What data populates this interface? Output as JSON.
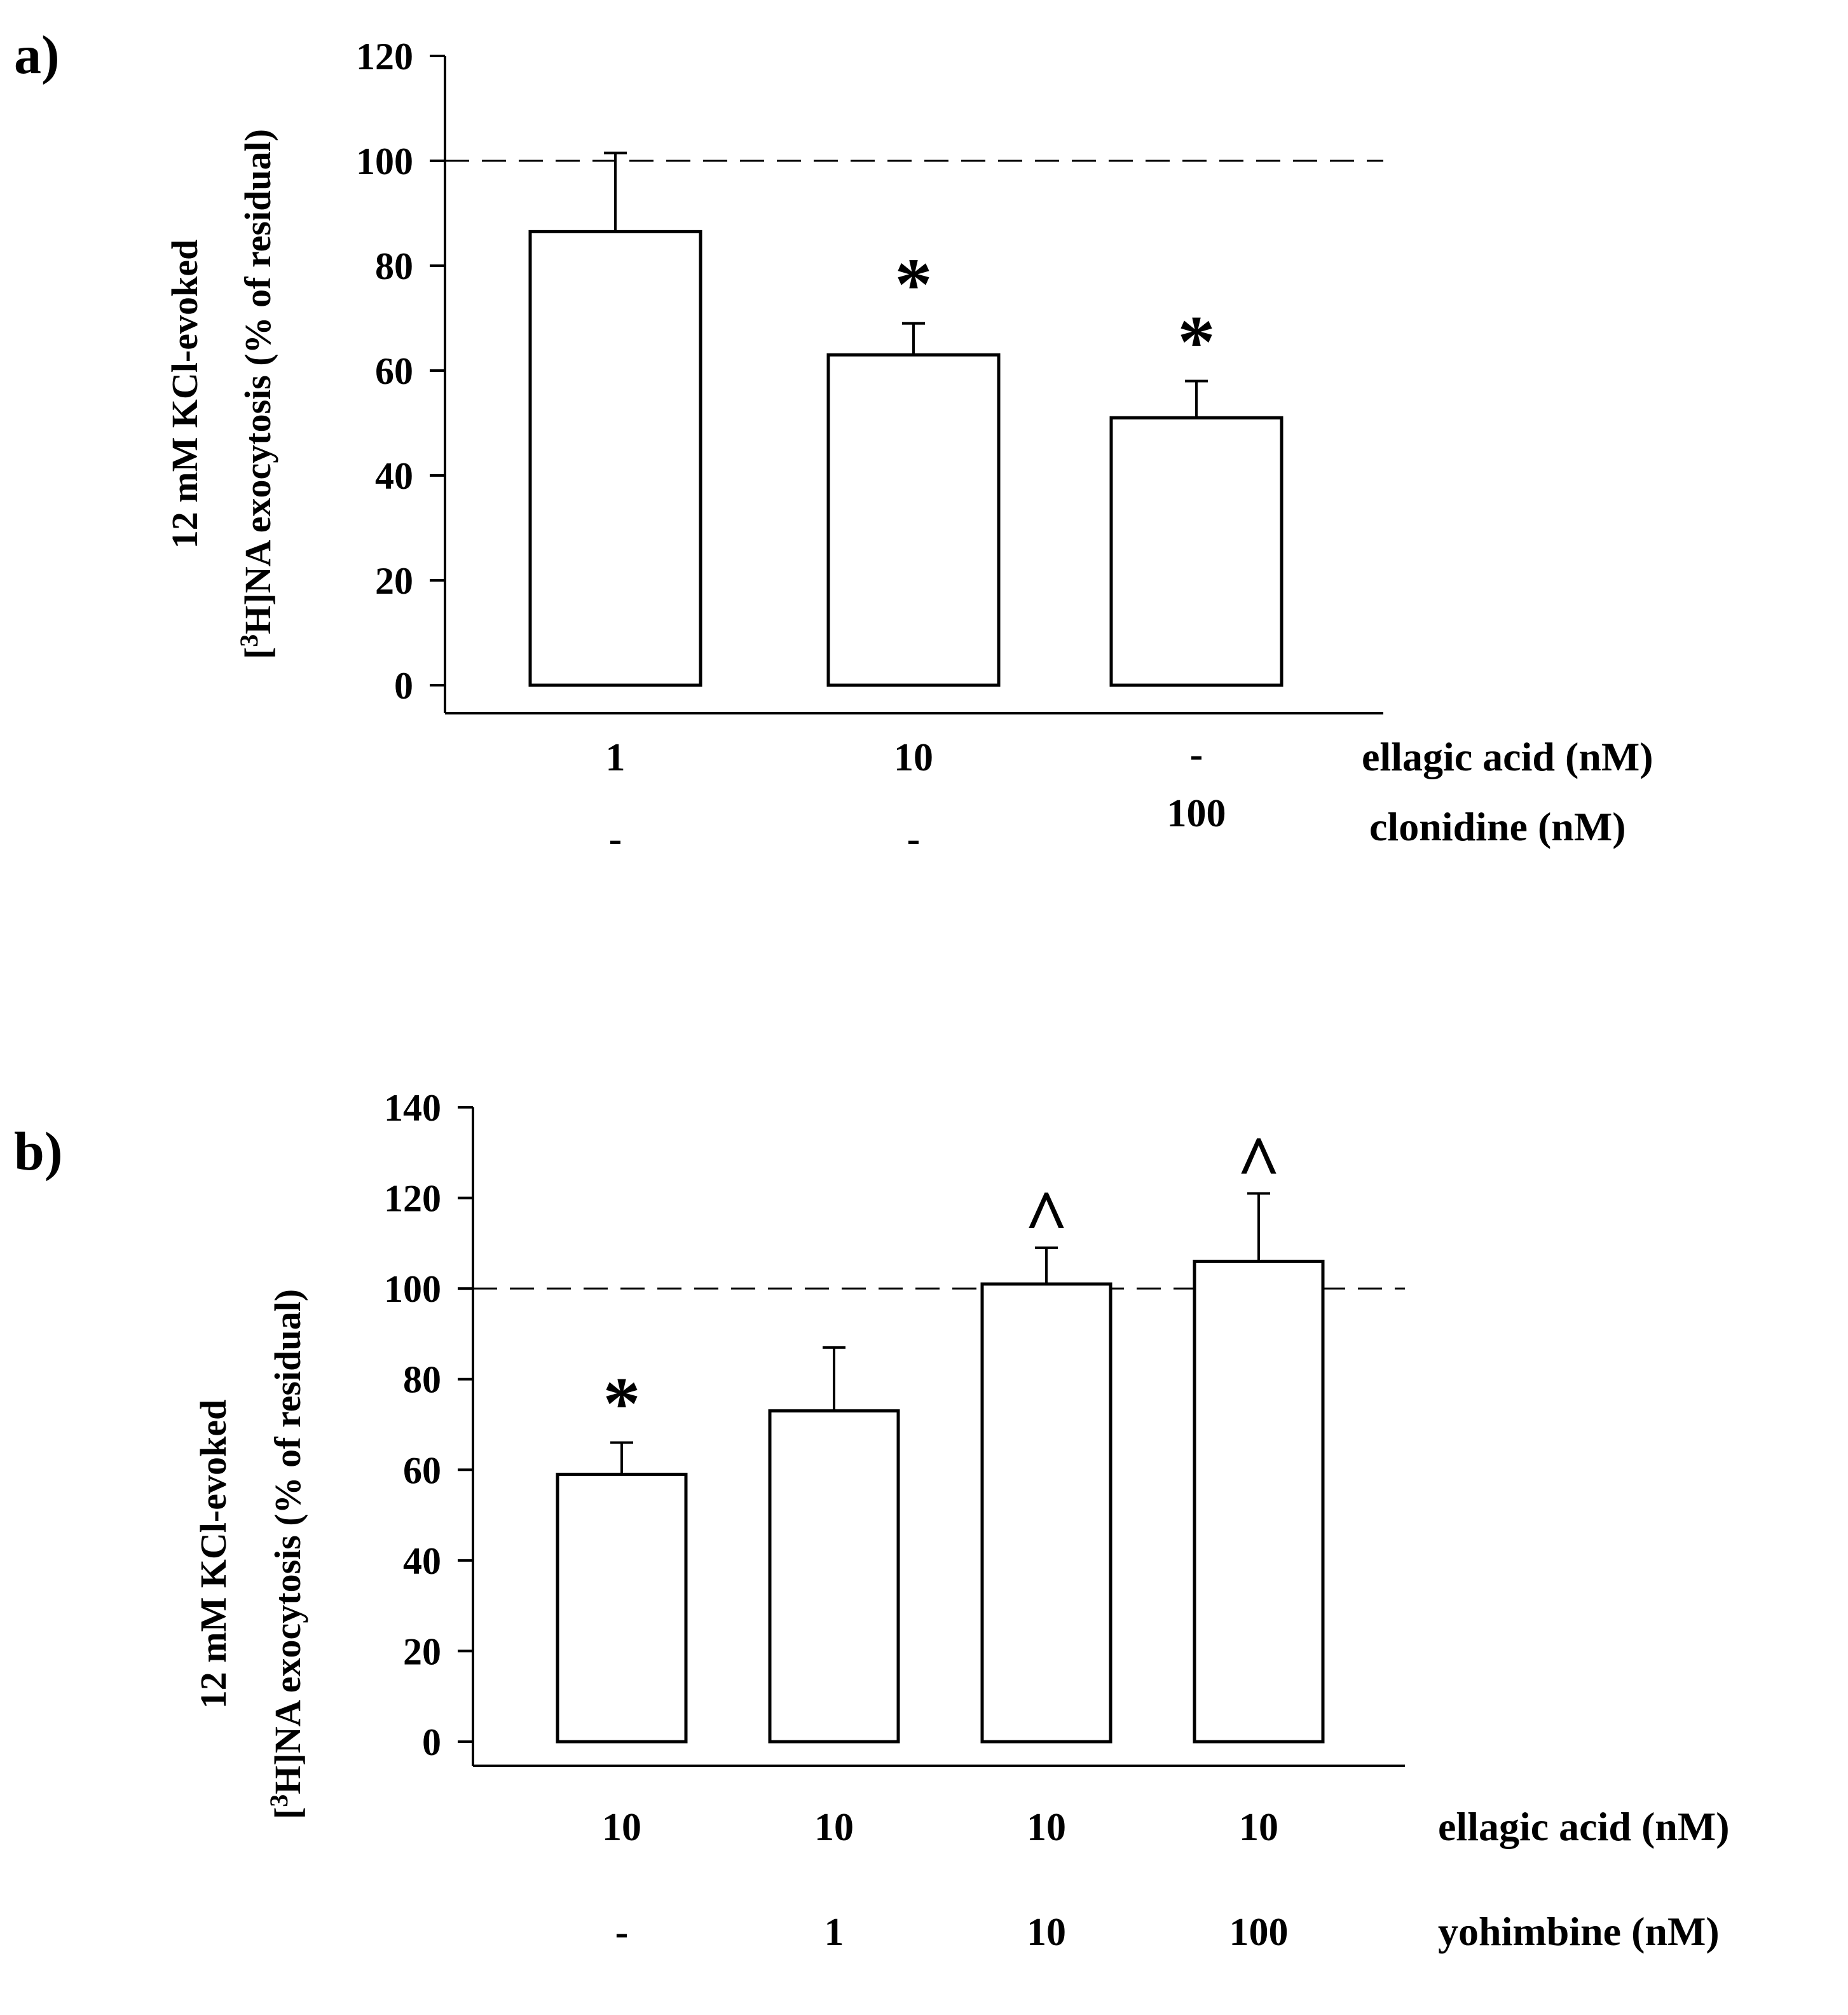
{
  "chart_data": [
    {
      "type": "bar",
      "panel_label": "a)",
      "ylabel_line1": "12 mM KCl-evoked",
      "ylabel_line2_prefix": "[",
      "ylabel_line2_sup": "3",
      "ylabel_line2_rest": "H]NA exocytosis (% of residual)",
      "ylim": [
        0,
        120
      ],
      "yticks": [
        "0",
        "20",
        "40",
        "60",
        "80",
        "100",
        "120"
      ],
      "reference_line": 100,
      "values": [
        86.5,
        63,
        51
      ],
      "errors": [
        15,
        6,
        7
      ],
      "significance": [
        "",
        "*",
        "*"
      ],
      "condition_rows": [
        {
          "label": "ellagic acid (nM)",
          "values": [
            "1",
            "10",
            "-"
          ]
        },
        {
          "label": "clonidine (nM)",
          "values": [
            "-",
            "-",
            "100"
          ]
        }
      ]
    },
    {
      "type": "bar",
      "panel_label": "b)",
      "ylabel_line1": "12 mM KCl-evoked",
      "ylabel_line2_prefix": "[",
      "ylabel_line2_sup": "3",
      "ylabel_line2_rest": "H]NA exocytosis (% of residual)",
      "ylim": [
        0,
        140
      ],
      "yticks": [
        "0",
        "20",
        "40",
        "60",
        "80",
        "100",
        "120",
        "140"
      ],
      "reference_line": 100,
      "values": [
        59,
        73,
        101,
        106
      ],
      "errors": [
        7,
        14,
        8,
        15
      ],
      "significance": [
        "*",
        "",
        "^",
        "^"
      ],
      "condition_rows": [
        {
          "label": "ellagic acid (nM)",
          "values": [
            "10",
            "10",
            "10",
            "10"
          ]
        },
        {
          "label": "yohimbine (nM)",
          "values": [
            "-",
            "1",
            "10",
            "100"
          ]
        }
      ]
    }
  ]
}
